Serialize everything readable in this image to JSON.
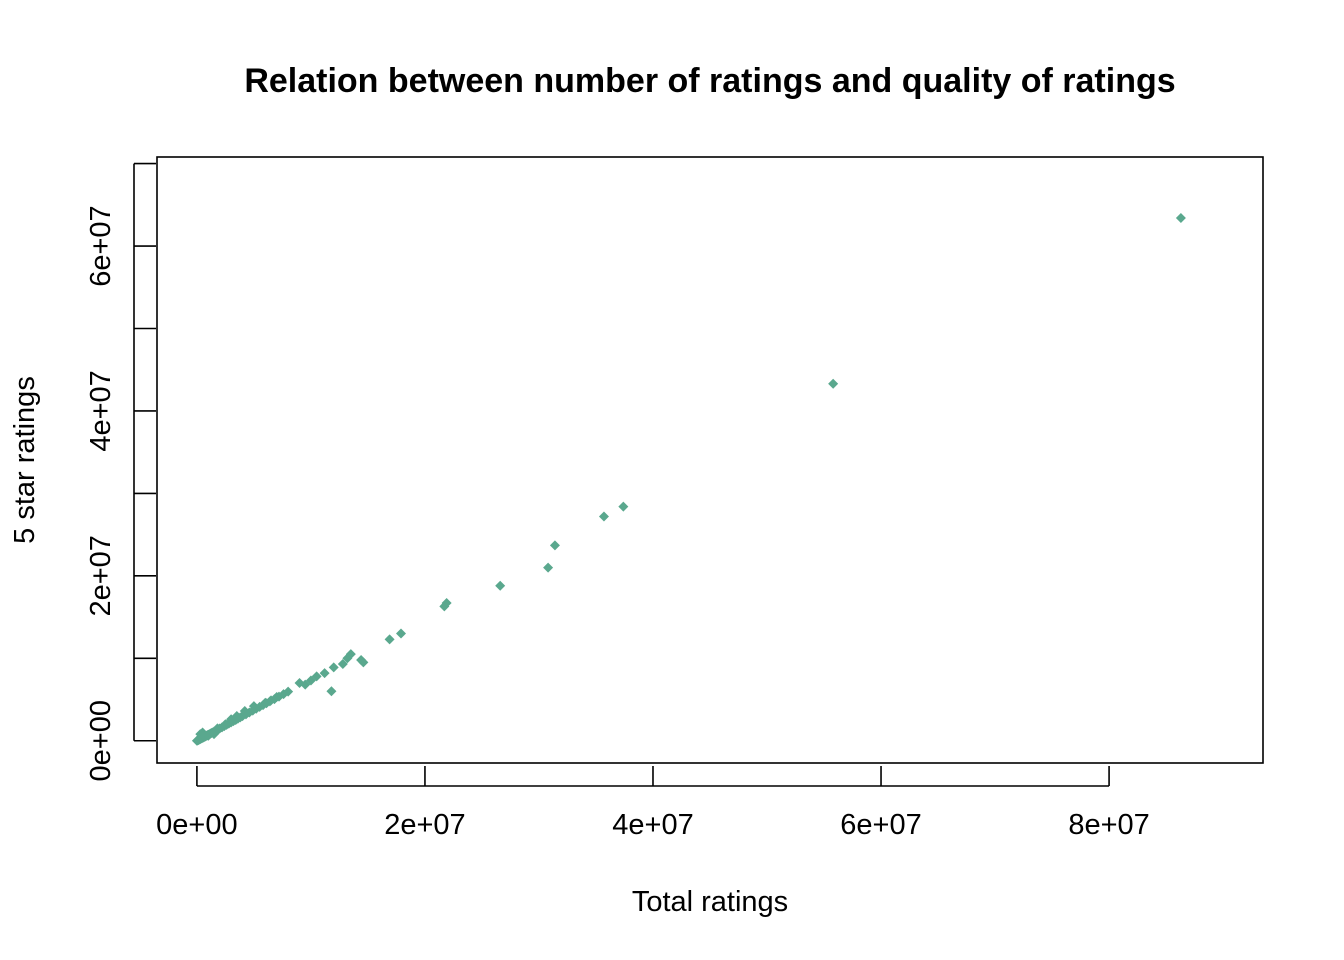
{
  "chart_data": {
    "type": "scatter",
    "title": "Relation between number of ratings and quality of ratings",
    "xlabel": "Total ratings",
    "ylabel": "5 star ratings",
    "xlim": [
      -3500000,
      93500000
    ],
    "ylim": [
      -2700000,
      70800000
    ],
    "x_ticks": [
      0,
      20000000,
      40000000,
      60000000,
      80000000
    ],
    "x_tick_labels": [
      "0e+00",
      "2e+07",
      "4e+07",
      "6e+07",
      "8e+07"
    ],
    "y_ticks": [
      0,
      10000000,
      20000000,
      30000000,
      40000000,
      50000000,
      60000000,
      70000000
    ],
    "y_tick_labels": [
      "0e+00",
      "",
      "2e+07",
      "",
      "4e+07",
      "",
      "6e+07",
      ""
    ],
    "grid": false,
    "marker": "diamond",
    "point_color": "#5aa88e",
    "points": [
      [
        0,
        0
      ],
      [
        50000,
        30000
      ],
      [
        100000,
        70000
      ],
      [
        150000,
        90000
      ],
      [
        200000,
        150000
      ],
      [
        250000,
        180000
      ],
      [
        300000,
        200000
      ],
      [
        350000,
        260000
      ],
      [
        400000,
        300000
      ],
      [
        450000,
        320000
      ],
      [
        500000,
        360000
      ],
      [
        550000,
        400000
      ],
      [
        600000,
        430000
      ],
      [
        650000,
        470000
      ],
      [
        700000,
        500000
      ],
      [
        750000,
        540000
      ],
      [
        800000,
        580000
      ],
      [
        850000,
        620000
      ],
      [
        900000,
        650000
      ],
      [
        950000,
        690000
      ],
      [
        1000000,
        720000
      ],
      [
        1100000,
        800000
      ],
      [
        1200000,
        880000
      ],
      [
        1300000,
        950000
      ],
      [
        1400000,
        1020000
      ],
      [
        1500000,
        1100000
      ],
      [
        1600000,
        1180000
      ],
      [
        1700000,
        1250000
      ],
      [
        1800000,
        1330000
      ],
      [
        1900000,
        1400000
      ],
      [
        2000000,
        1480000
      ],
      [
        2200000,
        1620000
      ],
      [
        2400000,
        1780000
      ],
      [
        2600000,
        1930000
      ],
      [
        2800000,
        2080000
      ],
      [
        3000000,
        2230000
      ],
      [
        3200000,
        2380000
      ],
      [
        3400000,
        2520000
      ],
      [
        3600000,
        2680000
      ],
      [
        3800000,
        2830000
      ],
      [
        4000000,
        2980000
      ],
      [
        4300000,
        3200000
      ],
      [
        4600000,
        3420000
      ],
      [
        4900000,
        3650000
      ],
      [
        5200000,
        3880000
      ],
      [
        5500000,
        4100000
      ],
      [
        5800000,
        4320000
      ],
      [
        6100000,
        4550000
      ],
      [
        6400000,
        4780000
      ],
      [
        6800000,
        5050000
      ],
      [
        7200000,
        5350000
      ],
      [
        7600000,
        5650000
      ],
      [
        8000000,
        5950000
      ],
      [
        300000,
        800000
      ],
      [
        500000,
        1000000
      ],
      [
        700000,
        500000
      ],
      [
        1000000,
        600000
      ],
      [
        1500000,
        800000
      ],
      [
        1800000,
        1500000
      ],
      [
        2500000,
        2000000
      ],
      [
        3000000,
        2600000
      ],
      [
        3500000,
        3000000
      ],
      [
        4200000,
        3600000
      ],
      [
        5000000,
        4200000
      ],
      [
        6000000,
        4600000
      ],
      [
        6500000,
        4900000
      ],
      [
        7000000,
        5300000
      ],
      [
        9000000,
        7000000
      ],
      [
        9500000,
        6800000
      ],
      [
        10000000,
        7300000
      ],
      [
        10500000,
        7800000
      ],
      [
        11200000,
        8200000
      ],
      [
        11800000,
        6000000
      ],
      [
        12000000,
        8900000
      ],
      [
        12800000,
        9300000
      ],
      [
        13200000,
        10000000
      ],
      [
        13500000,
        10500000
      ],
      [
        14400000,
        9800000
      ],
      [
        14600000,
        9500000
      ],
      [
        16900000,
        12300000
      ],
      [
        17900000,
        13000000
      ],
      [
        21700000,
        16300000
      ],
      [
        21900000,
        16700000
      ],
      [
        26600000,
        18800000
      ],
      [
        30800000,
        21000000
      ],
      [
        31400000,
        23700000
      ],
      [
        35700000,
        27200000
      ],
      [
        37400000,
        28400000
      ],
      [
        55800000,
        43300000
      ],
      [
        86300000,
        63400000
      ]
    ]
  }
}
